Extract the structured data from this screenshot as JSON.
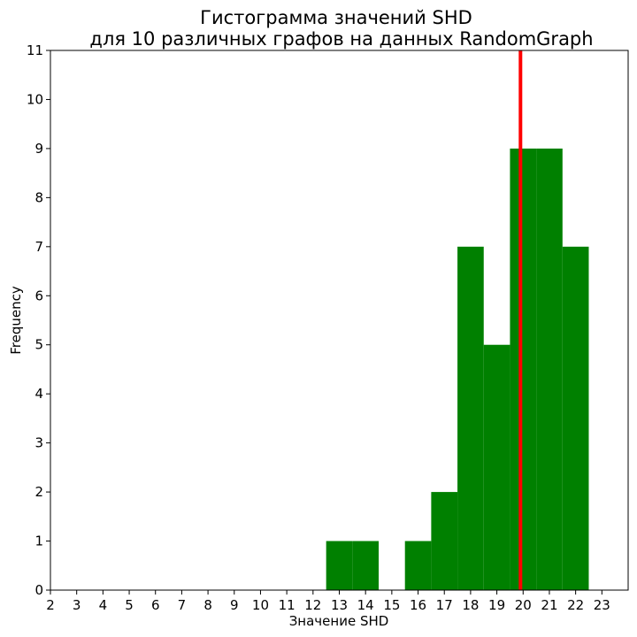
{
  "chart_data": {
    "type": "bar",
    "title_line1": "Гистограмма значений SHD",
    "title_line2": "для 10 различных графов на данных RandomGraph",
    "xlabel": "Значение SHD",
    "ylabel": "Frequency",
    "xlim": [
      2,
      24
    ],
    "ylim": [
      0,
      11
    ],
    "xticks": [
      2,
      3,
      4,
      5,
      6,
      7,
      8,
      9,
      10,
      11,
      12,
      13,
      14,
      15,
      16,
      17,
      18,
      19,
      20,
      21,
      22,
      23
    ],
    "yticks": [
      0,
      1,
      2,
      3,
      4,
      5,
      6,
      7,
      8,
      9,
      10,
      11
    ],
    "bar_color": "#008000",
    "bins": [
      {
        "x0": 12.5,
        "x1": 13.5,
        "value": 1
      },
      {
        "x0": 13.5,
        "x1": 14.5,
        "value": 1
      },
      {
        "x0": 15.5,
        "x1": 16.5,
        "value": 1
      },
      {
        "x0": 16.5,
        "x1": 17.5,
        "value": 2
      },
      {
        "x0": 17.5,
        "x1": 18.5,
        "value": 7
      },
      {
        "x0": 18.5,
        "x1": 19.5,
        "value": 5
      },
      {
        "x0": 19.5,
        "x1": 20.5,
        "value": 9
      },
      {
        "x0": 20.5,
        "x1": 21.5,
        "value": 9
      },
      {
        "x0": 21.5,
        "x1": 22.5,
        "value": 7
      }
    ],
    "vline": {
      "x": 19.9,
      "color": "#ff0000"
    },
    "grid": false,
    "legend": "none"
  }
}
